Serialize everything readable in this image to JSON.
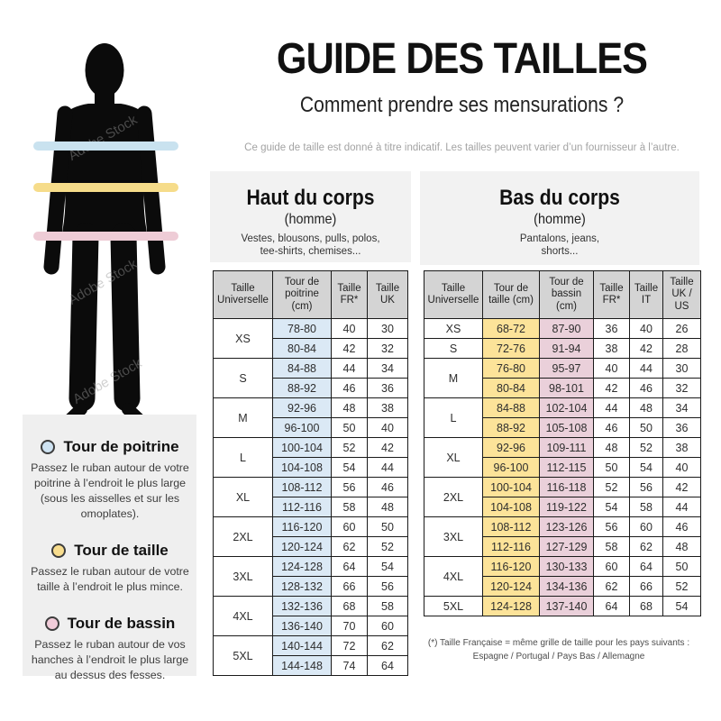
{
  "page": {
    "title": "GUIDE DES TAILLES",
    "subtitle": "Comment prendre ses mensurations ?",
    "disclaimer": "Ce guide de taille est donné à titre indicatif. Les tailles peuvent varier d’un fournisseur à l’autre.",
    "watermark": "Adobe Stock"
  },
  "colors": {
    "chest_blue_band": "#c9e2ef",
    "waist_yellow_band": "#f6dc8a",
    "hips_pink_band": "#eeccd6",
    "chest_blue_cell": "#dbe9f5",
    "waist_yellow_cell": "#fce399",
    "hips_pink_cell": "#ead0da",
    "table_header_grey": "#d4d4d4",
    "panel_grey": "#f2f2f2"
  },
  "legend": {
    "items": [
      {
        "title": "Tour de poitrine",
        "color": "#cfe3f2",
        "text": "Passez le ruban autour de votre\npoitrine à l’endroit le plus large\n(sous les aisselles et sur les\nomoplates)."
      },
      {
        "title": "Tour de taille",
        "color": "#f8dd8e",
        "text": "Passez le ruban autour de votre\ntaille à l’endroit le plus mince."
      },
      {
        "title": "Tour de bassin",
        "color": "#f1ccd9",
        "text": "Passez le ruban autour de vos\nhanches à l’endroit le plus large\nau dessus des fesses."
      }
    ]
  },
  "upper": {
    "title": "Haut du corps",
    "gender": "(homme)",
    "items": "Vestes, blousons, pulls, polos,\ntee-shirts, chemises...",
    "columns": [
      "Taille Universelle",
      "Tour de poitrine (cm)",
      "Taille FR*",
      "Taille UK"
    ],
    "groups": [
      {
        "size": "XS",
        "rows": [
          [
            "78-80",
            "40",
            "30"
          ],
          [
            "80-84",
            "42",
            "32"
          ]
        ]
      },
      {
        "size": "S",
        "rows": [
          [
            "84-88",
            "44",
            "34"
          ],
          [
            "88-92",
            "46",
            "36"
          ]
        ]
      },
      {
        "size": "M",
        "rows": [
          [
            "92-96",
            "48",
            "38"
          ],
          [
            "96-100",
            "50",
            "40"
          ]
        ]
      },
      {
        "size": "L",
        "rows": [
          [
            "100-104",
            "52",
            "42"
          ],
          [
            "104-108",
            "54",
            "44"
          ]
        ]
      },
      {
        "size": "XL",
        "rows": [
          [
            "108-112",
            "56",
            "46"
          ],
          [
            "112-116",
            "58",
            "48"
          ]
        ]
      },
      {
        "size": "2XL",
        "rows": [
          [
            "116-120",
            "60",
            "50"
          ],
          [
            "120-124",
            "62",
            "52"
          ]
        ]
      },
      {
        "size": "3XL",
        "rows": [
          [
            "124-128",
            "64",
            "54"
          ],
          [
            "128-132",
            "66",
            "56"
          ]
        ]
      },
      {
        "size": "4XL",
        "rows": [
          [
            "132-136",
            "68",
            "58"
          ],
          [
            "136-140",
            "70",
            "60"
          ]
        ]
      },
      {
        "size": "5XL",
        "rows": [
          [
            "140-144",
            "72",
            "62"
          ],
          [
            "144-148",
            "74",
            "64"
          ]
        ]
      }
    ]
  },
  "lower": {
    "title": "Bas du corps",
    "gender": "(homme)",
    "items": "Pantalons, jeans,\nshorts...",
    "columns": [
      "Taille Universelle",
      "Tour de taille (cm)",
      "Tour de bassin (cm)",
      "Taille FR*",
      "Taille IT",
      "Taille UK / US"
    ],
    "groups": [
      {
        "size": "XS",
        "rows": [
          [
            "68-72",
            "87-90",
            "36",
            "40",
            "26"
          ]
        ]
      },
      {
        "size": "S",
        "rows": [
          [
            "72-76",
            "91-94",
            "38",
            "42",
            "28"
          ]
        ]
      },
      {
        "size": "M",
        "rows": [
          [
            "76-80",
            "95-97",
            "40",
            "44",
            "30"
          ],
          [
            "80-84",
            "98-101",
            "42",
            "46",
            "32"
          ]
        ]
      },
      {
        "size": "L",
        "rows": [
          [
            "84-88",
            "102-104",
            "44",
            "48",
            "34"
          ],
          [
            "88-92",
            "105-108",
            "46",
            "50",
            "36"
          ]
        ]
      },
      {
        "size": "XL",
        "rows": [
          [
            "92-96",
            "109-111",
            "48",
            "52",
            "38"
          ],
          [
            "96-100",
            "112-115",
            "50",
            "54",
            "40"
          ]
        ]
      },
      {
        "size": "2XL",
        "rows": [
          [
            "100-104",
            "116-118",
            "52",
            "56",
            "42"
          ],
          [
            "104-108",
            "119-122",
            "54",
            "58",
            "44"
          ]
        ]
      },
      {
        "size": "3XL",
        "rows": [
          [
            "108-112",
            "123-126",
            "56",
            "60",
            "46"
          ],
          [
            "112-116",
            "127-129",
            "58",
            "62",
            "48"
          ]
        ]
      },
      {
        "size": "4XL",
        "rows": [
          [
            "116-120",
            "130-133",
            "60",
            "64",
            "50"
          ],
          [
            "120-124",
            "134-136",
            "62",
            "66",
            "52"
          ]
        ]
      },
      {
        "size": "5XL",
        "rows": [
          [
            "124-128",
            "137-140",
            "64",
            "68",
            "54"
          ]
        ]
      }
    ]
  },
  "footnote": {
    "line1": "(*) Taille Française = même grille de taille pour les pays suivants :",
    "line2": "Espagne / Portugal / Pays Bas / Allemagne"
  }
}
